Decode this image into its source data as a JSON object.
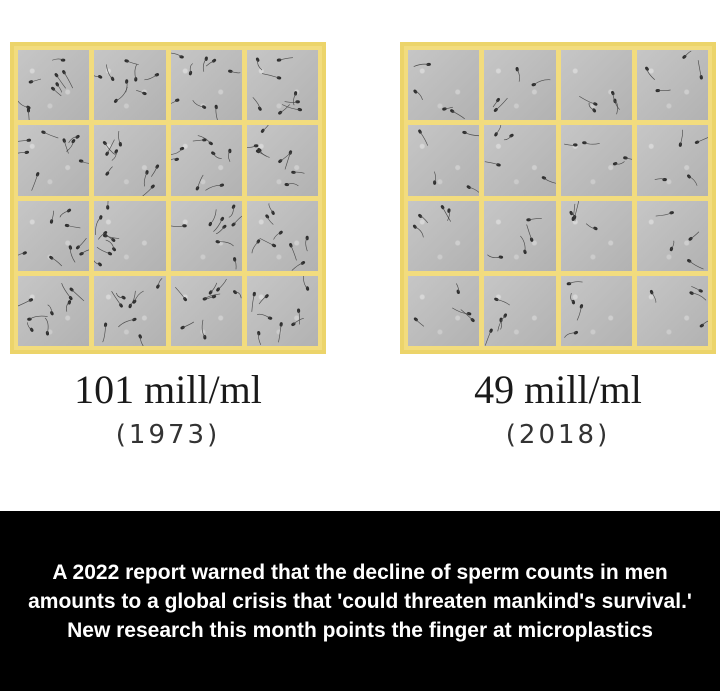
{
  "left_panel": {
    "count_label": "101 mill/ml",
    "year_label": "(1973)",
    "sperm_density": 101
  },
  "right_panel": {
    "count_label": "49 mill/ml",
    "year_label": "(2018)",
    "sperm_density": 49
  },
  "caption": {
    "text": "A 2022 report warned that the decline of sperm counts in men amounts to a global crisis that 'could threaten mankind's survival.' New research this month points the finger at microplastics"
  },
  "colors": {
    "grid_border": "#ecd46a",
    "banner_background": "#000000",
    "banner_text": "#ffffff"
  }
}
